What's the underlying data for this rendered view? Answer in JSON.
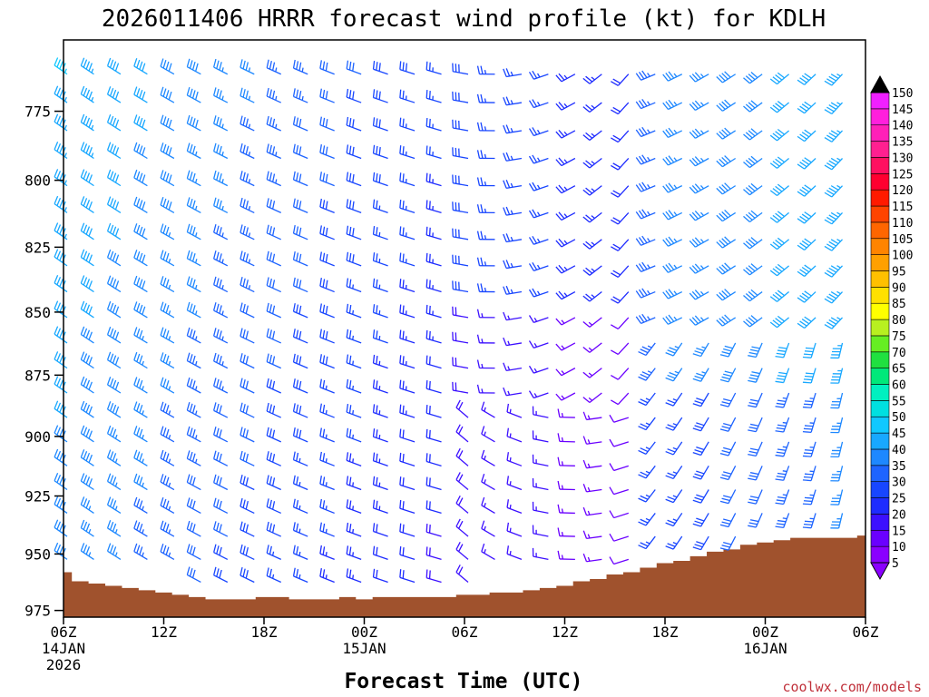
{
  "chart_data": {
    "type": "wind-barb time-height section",
    "title": "2026011406 HRRR forecast wind profile (kt) for KDLH",
    "xlabel": "Forecast Time (UTC)",
    "ylabel": "",
    "credit": "coolwx.com/models",
    "x_range_hours": [
      0,
      48
    ],
    "y_range_hpa": [
      750,
      978
    ],
    "y_scale": "log-pressure",
    "x_ticks": [
      {
        "hour": 0,
        "label": "06Z",
        "date": "14JAN",
        "year": "2026"
      },
      {
        "hour": 6,
        "label": "12Z"
      },
      {
        "hour": 12,
        "label": "18Z"
      },
      {
        "hour": 18,
        "label": "00Z",
        "date": "15JAN"
      },
      {
        "hour": 24,
        "label": "06Z"
      },
      {
        "hour": 30,
        "label": "12Z"
      },
      {
        "hour": 36,
        "label": "18Z"
      },
      {
        "hour": 42,
        "label": "00Z",
        "date": "16JAN"
      },
      {
        "hour": 48,
        "label": "06Z"
      }
    ],
    "y_ticks": [
      {
        "p": 775,
        "label": "775"
      },
      {
        "p": 800,
        "label": "800"
      },
      {
        "p": 825,
        "label": "825"
      },
      {
        "p": 850,
        "label": "850"
      },
      {
        "p": 875,
        "label": "875"
      },
      {
        "p": 900,
        "label": "900"
      },
      {
        "p": 925,
        "label": "925"
      },
      {
        "p": 950,
        "label": "950"
      },
      {
        "p": 975,
        "label": "975"
      }
    ],
    "colorbar": {
      "unit": "kt",
      "levels": [
        5,
        10,
        15,
        20,
        25,
        30,
        35,
        40,
        45,
        50,
        55,
        60,
        65,
        70,
        75,
        80,
        85,
        90,
        95,
        100,
        105,
        110,
        115,
        120,
        125,
        130,
        135,
        140,
        145,
        150
      ],
      "labels": [
        "5",
        "10",
        "15",
        "20",
        "25",
        "30",
        "35",
        "40",
        "45",
        "50",
        "55",
        "60",
        "65",
        "70",
        "75",
        "80",
        "85",
        "90",
        "95",
        "100",
        "105",
        "110",
        "115",
        "120",
        "125",
        "130",
        "135",
        "140",
        "145",
        "150"
      ],
      "colors": [
        "#8a00ff",
        "#6a00ff",
        "#3c10ff",
        "#1e2cff",
        "#1846ff",
        "#1e64ff",
        "#1e88ff",
        "#18a8ff",
        "#10c8ff",
        "#00e0e0",
        "#00f0c0",
        "#00e87a",
        "#20e040",
        "#66ee22",
        "#b8f020",
        "#ffff00",
        "#ffe000",
        "#ffc000",
        "#ffa000",
        "#ff8400",
        "#ff6600",
        "#ff4400",
        "#ff1a00",
        "#ff0030",
        "#ff1060",
        "#ff2090",
        "#ff20b8",
        "#ff20dc",
        "#f020ff",
        "#000000"
      ]
    },
    "surface_pressure": {
      "hours": [
        0,
        1,
        2,
        3,
        4,
        5,
        6,
        7,
        8,
        9,
        10,
        11,
        12,
        13,
        14,
        15,
        16,
        17,
        18,
        19,
        20,
        21,
        22,
        23,
        24,
        25,
        26,
        27,
        28,
        29,
        30,
        31,
        32,
        33,
        34,
        35,
        36,
        37,
        38,
        39,
        40,
        41,
        42,
        43,
        44,
        45,
        46,
        47,
        48
      ],
      "values": [
        958,
        962,
        963,
        964,
        965,
        966,
        967,
        968,
        969,
        970,
        970,
        970,
        969,
        969,
        970,
        970,
        970,
        969,
        970,
        969,
        969,
        969,
        969,
        969,
        968,
        968,
        967,
        967,
        966,
        965,
        964,
        962,
        961,
        959,
        958,
        956,
        954,
        953,
        951,
        949,
        948,
        946,
        945,
        944,
        943,
        943,
        943,
        943,
        942
      ]
    },
    "wind_columns": [
      {
        "hour": 0.1,
        "p": [
          760,
          770,
          780,
          790,
          800,
          810,
          820,
          830,
          840,
          850,
          860,
          870,
          880,
          890,
          900,
          910,
          920,
          930,
          940
        ],
        "dir": [
          300,
          300,
          300,
          300,
          300,
          300,
          300,
          300,
          300,
          300,
          300,
          300,
          300,
          300,
          300,
          300,
          300,
          300,
          300
        ],
        "spd": [
          45,
          45,
          45,
          45,
          45,
          45,
          45,
          45,
          45,
          45,
          45,
          45,
          45,
          45,
          45,
          45,
          45,
          45,
          45
        ]
      }
    ]
  }
}
